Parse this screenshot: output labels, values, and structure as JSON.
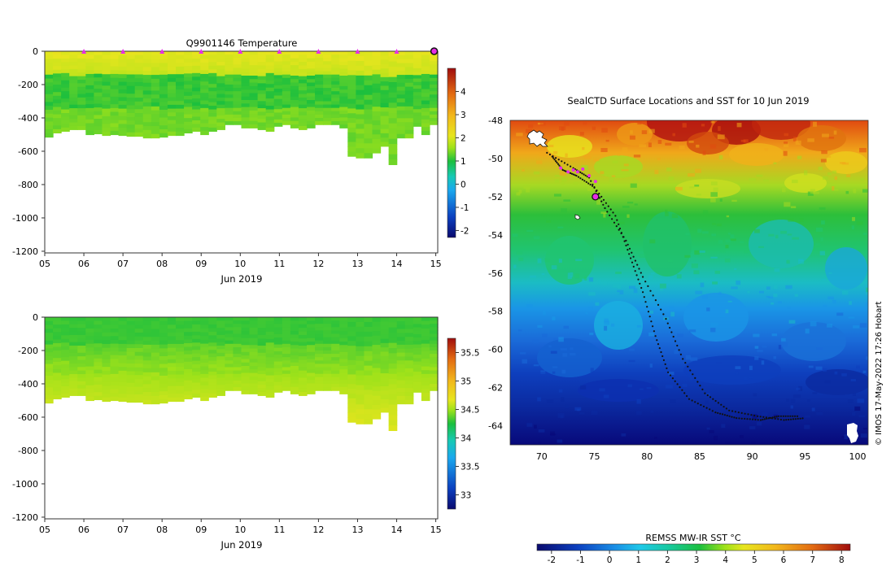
{
  "chart_data": [
    {
      "type": "heatmap",
      "title": "Q9901146  Temperature",
      "xlabel": "Jun 2019",
      "ylabel": "",
      "x_ticks": [
        "05",
        "06",
        "07",
        "08",
        "09",
        "10",
        "11",
        "12",
        "13",
        "14",
        "15"
      ],
      "y_ticks": [
        "0",
        "-200",
        "-400",
        "-600",
        "-800",
        "-1000",
        "-1200"
      ],
      "xlim": [
        5,
        15.05
      ],
      "ylim": [
        -1210,
        0
      ],
      "colorbar": {
        "min": -2.3,
        "max": 5,
        "ticks": [
          "4",
          "3",
          "2",
          "1",
          "0",
          "-1",
          "-2"
        ]
      },
      "surface_markers_days": [
        6,
        7,
        8,
        9,
        10,
        11,
        12,
        13,
        14
      ],
      "last_position_marker_day": 15,
      "profile_depths_m": [
        515,
        490,
        480,
        470,
        470,
        500,
        495,
        505,
        500,
        505,
        510,
        510,
        520,
        520,
        515,
        505,
        505,
        490,
        480,
        500,
        480,
        470,
        440,
        440,
        460,
        460,
        470,
        480,
        450,
        440,
        460,
        470,
        460,
        440,
        440,
        440,
        460,
        630,
        640,
        640,
        610,
        570,
        680,
        520,
        520,
        450,
        500,
        440
      ]
    },
    {
      "type": "heatmap",
      "title": "",
      "xlabel": "Jun 2019",
      "ylabel": "",
      "x_ticks": [
        "05",
        "06",
        "07",
        "08",
        "09",
        "10",
        "11",
        "12",
        "13",
        "14",
        "15"
      ],
      "y_ticks": [
        "0",
        "-200",
        "-400",
        "-600",
        "-800",
        "-1000",
        "-1200"
      ],
      "xlim": [
        5,
        15.05
      ],
      "ylim": [
        -1210,
        0
      ],
      "colorbar": {
        "min": 32.75,
        "max": 35.75,
        "ticks": [
          "35.5",
          "35",
          "34.5",
          "34",
          "33.5",
          "33"
        ]
      }
    },
    {
      "type": "heatmap",
      "title": "SealCTD Surface Locations and SST for 10 Jun 2019",
      "xlabel": "",
      "ylabel": "",
      "x_ticks": [
        "70",
        "75",
        "80",
        "85",
        "90",
        "95",
        "100"
      ],
      "y_ticks": [
        "-48",
        "-50",
        "-52",
        "-54",
        "-56",
        "-58",
        "-60",
        "-62",
        "-64"
      ],
      "xlim": [
        67,
        101
      ],
      "ylim": [
        -65,
        -48
      ],
      "colorbar": {
        "label": "REMSS MW-IR SST °C",
        "min": -2.5,
        "max": 8.3,
        "ticks": [
          "-2",
          "-1",
          "0",
          "1",
          "2",
          "3",
          "4",
          "5",
          "6",
          "7",
          "8"
        ]
      },
      "credit": "© IMOS 17-May-2022 17:26 Hobart",
      "track_path": [
        [
          71,
          -49.9
        ],
        [
          72,
          -50.6
        ],
        [
          73.3,
          -50.9
        ],
        [
          75,
          -51.5
        ],
        [
          77,
          -53
        ],
        [
          78.3,
          -55
        ],
        [
          79.6,
          -57
        ],
        [
          80.8,
          -59.3
        ],
        [
          82,
          -61.2
        ],
        [
          84,
          -62.6
        ],
        [
          86.5,
          -63.3
        ],
        [
          88.5,
          -63.6
        ],
        [
          90.8,
          -63.7
        ],
        [
          92.5,
          -63.5
        ],
        [
          94.5,
          -63.5
        ]
      ],
      "track_path_2": [
        [
          70.5,
          -49.7
        ],
        [
          73,
          -50.5
        ],
        [
          74.5,
          -51
        ],
        [
          76,
          -52.6
        ],
        [
          78,
          -54.3
        ],
        [
          79.6,
          -56.2
        ],
        [
          81.8,
          -58.4
        ],
        [
          83.4,
          -60.5
        ],
        [
          85.5,
          -62.3
        ],
        [
          87.8,
          -63.2
        ],
        [
          90.5,
          -63.5
        ],
        [
          93,
          -63.7
        ],
        [
          95,
          -63.6
        ]
      ],
      "magenta_points": [
        [
          71.8,
          -50.5
        ],
        [
          72.5,
          -50.7
        ],
        [
          73.0,
          -50.6
        ],
        [
          73.4,
          -50.7
        ],
        [
          73.9,
          -50.55
        ],
        [
          74.5,
          -50.9
        ],
        [
          75.1,
          -51.2
        ]
      ],
      "current_position": [
        75.1,
        -52.0
      ]
    }
  ]
}
